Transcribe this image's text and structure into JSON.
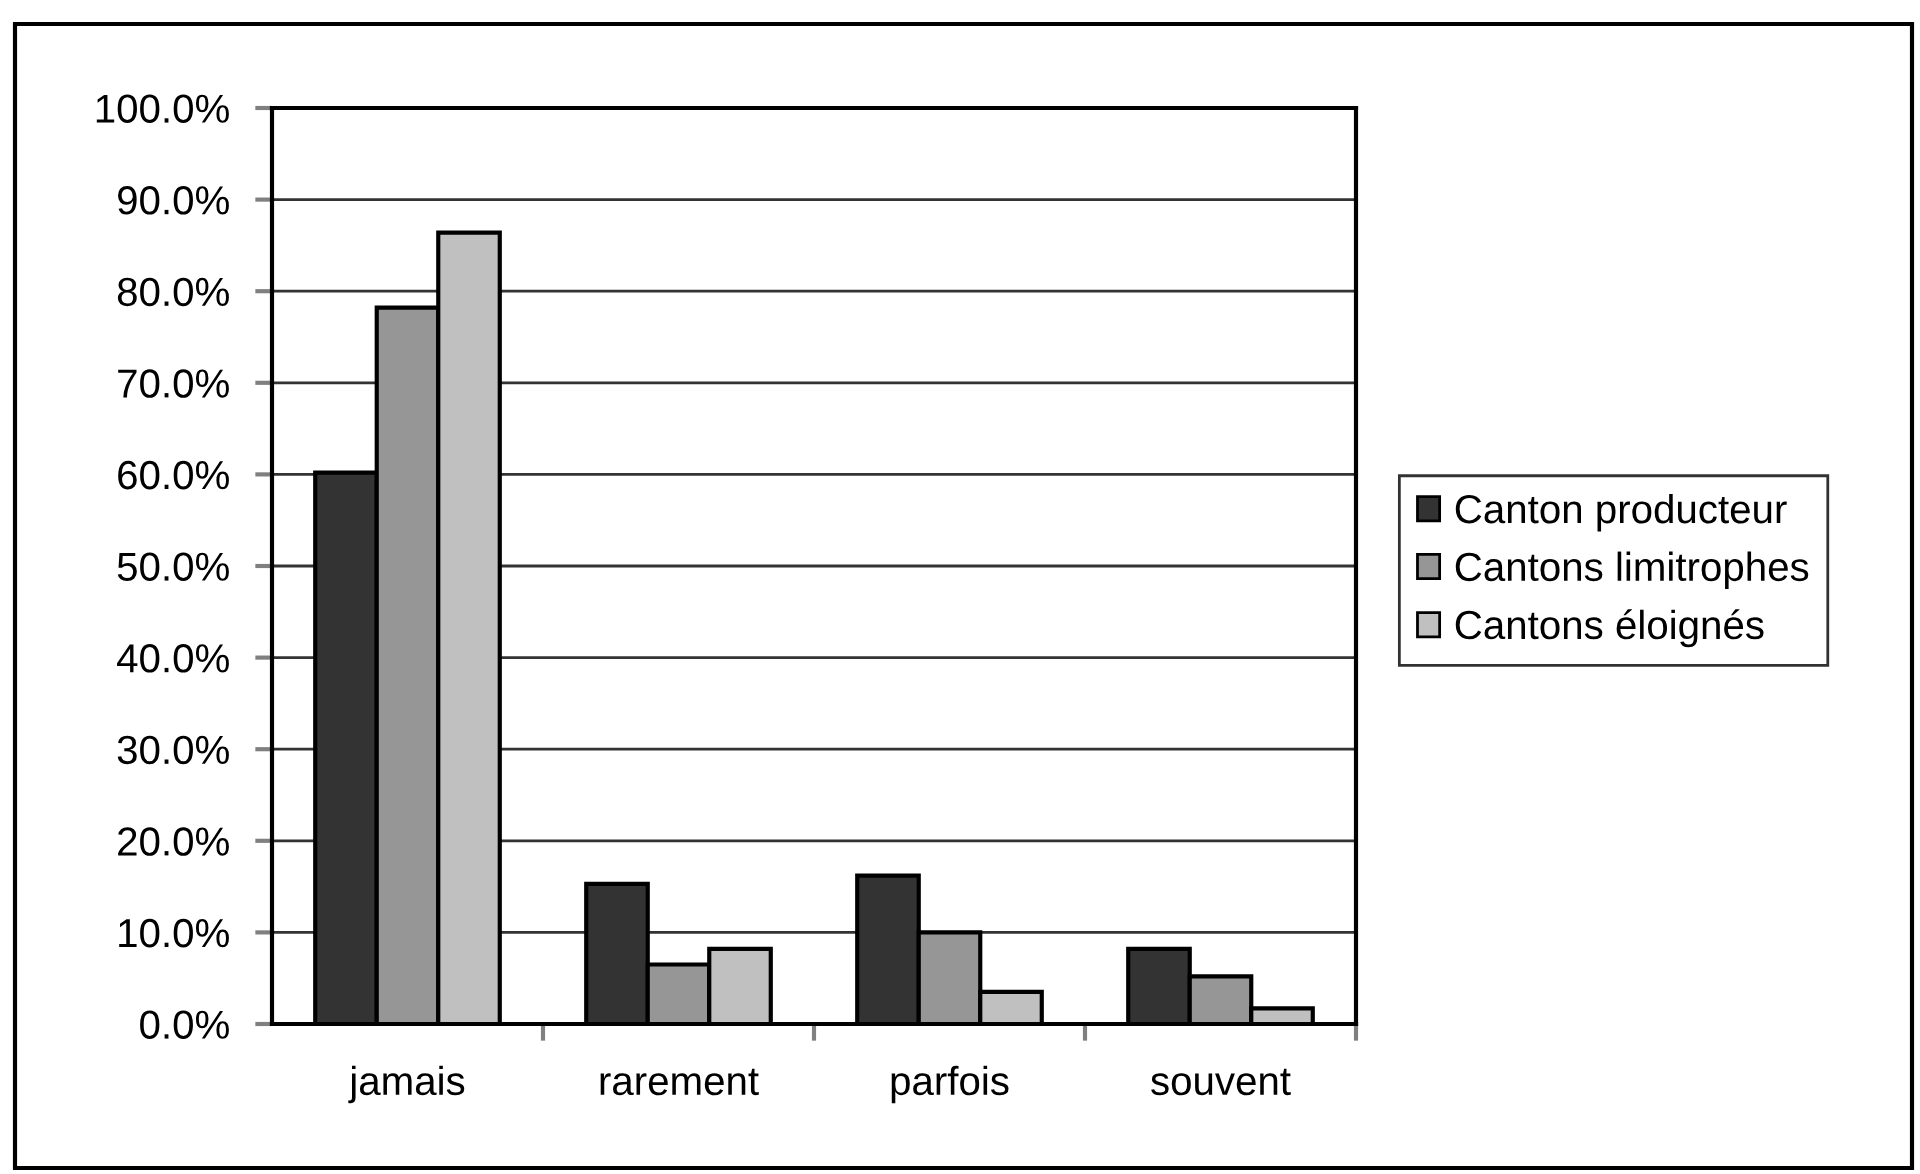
{
  "chart_data": {
    "type": "bar",
    "categories": [
      "jamais",
      "rarement",
      "parfois",
      "souvent"
    ],
    "series": [
      {
        "name": "Canton producteur",
        "color": "#333333",
        "values": [
          60.2,
          15.3,
          16.2,
          8.2
        ]
      },
      {
        "name": "Cantons limitrophes",
        "color": "#969696",
        "values": [
          78.2,
          6.5,
          10.0,
          5.2
        ]
      },
      {
        "name": "Cantons éloignés",
        "color": "#c0c0c0",
        "values": [
          86.4,
          8.2,
          3.5,
          1.7
        ]
      }
    ],
    "ylim": [
      0,
      100
    ],
    "yticks": [
      {
        "value": 0,
        "label": "0.0%"
      },
      {
        "value": 10,
        "label": "10.0%"
      },
      {
        "value": 20,
        "label": "20.0%"
      },
      {
        "value": 30,
        "label": "30.0%"
      },
      {
        "value": 40,
        "label": "40.0%"
      },
      {
        "value": 50,
        "label": "50.0%"
      },
      {
        "value": 60,
        "label": "60.0%"
      },
      {
        "value": 70,
        "label": "70.0%"
      },
      {
        "value": 80,
        "label": "80.0%"
      },
      {
        "value": 90,
        "label": "90.0%"
      },
      {
        "value": 100,
        "label": "100.0%"
      }
    ],
    "grid": "y",
    "legend": "right"
  }
}
